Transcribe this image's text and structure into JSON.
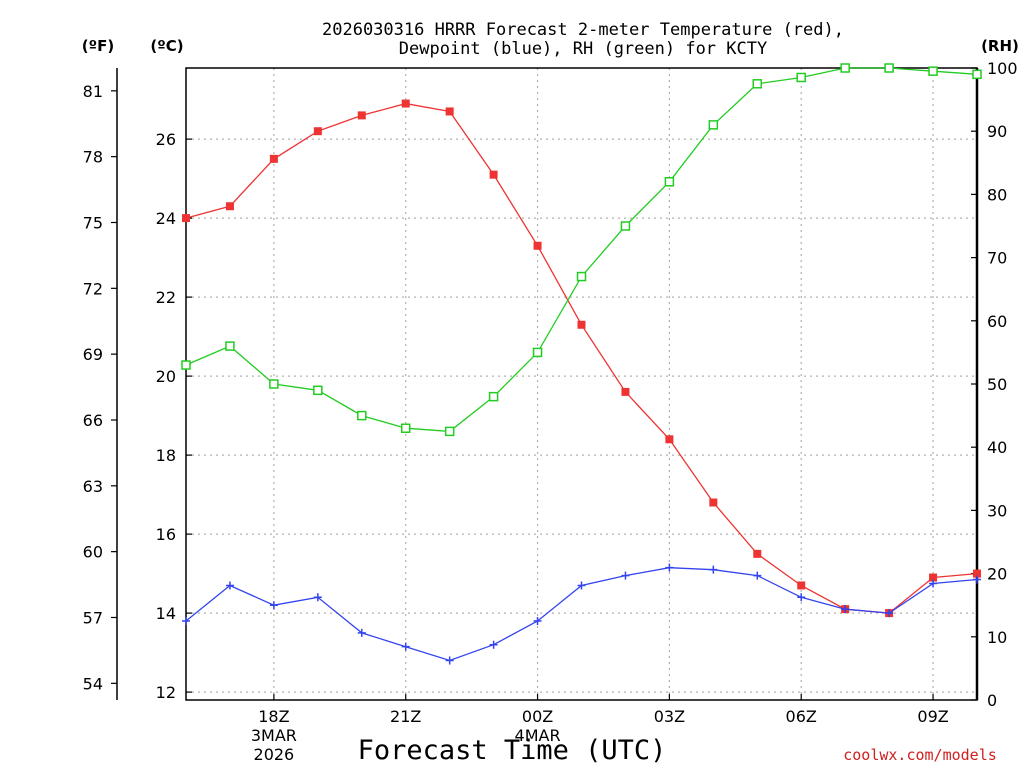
{
  "title": {
    "line1": "2026030316 HRRR Forecast 2-meter Temperature (red),",
    "line2": "Dewpoint (blue), RH (green) for KCTY"
  },
  "units": {
    "fahrenheit": "(ºF)",
    "celsius": "(ºC)",
    "rh": "(RH)"
  },
  "xlabel": "Forecast Time (UTC)",
  "credit": "coolwx.com/models",
  "colors": {
    "temperature": "#ee3333",
    "dewpoint": "#3344ee",
    "rh": "#22cc22",
    "grid": "#b0b0b0"
  },
  "chart_data": {
    "type": "line",
    "x": [
      16,
      17,
      18,
      19,
      20,
      21,
      22,
      23,
      24,
      25,
      26,
      27,
      28,
      29,
      30,
      31,
      32,
      33,
      34
    ],
    "x_unit": "hours after 00Z 3 MAR 2026",
    "xlim": [
      16,
      34
    ],
    "x_ticks": [
      {
        "x": 18,
        "lines": [
          "18Z",
          "3MAR",
          "2026"
        ]
      },
      {
        "x": 21,
        "lines": [
          "21Z"
        ]
      },
      {
        "x": 24,
        "lines": [
          "00Z",
          "4MAR"
        ]
      },
      {
        "x": 27,
        "lines": [
          "03Z"
        ]
      },
      {
        "x": 30,
        "lines": [
          "06Z"
        ]
      },
      {
        "x": 33,
        "lines": [
          "09Z"
        ]
      }
    ],
    "ylim_c": [
      11.8,
      27.8
    ],
    "yticks_c": [
      12,
      14,
      16,
      18,
      20,
      22,
      24,
      26
    ],
    "yticks_f": [
      54,
      57,
      60,
      63,
      66,
      69,
      72,
      75,
      78,
      81
    ],
    "ylim_rh": [
      0,
      100
    ],
    "yticks_rh": [
      0,
      10,
      20,
      30,
      40,
      50,
      60,
      70,
      80,
      90,
      100
    ],
    "series": [
      {
        "name": "Temperature",
        "axis": "c",
        "marker": "filled-square",
        "values": [
          24.0,
          24.3,
          25.5,
          26.2,
          26.6,
          26.9,
          26.7,
          25.1,
          23.3,
          21.3,
          19.6,
          18.4,
          16.8,
          15.5,
          14.7,
          14.1,
          14.0,
          14.9,
          15.0
        ]
      },
      {
        "name": "Dewpoint",
        "axis": "c",
        "marker": "plus",
        "values": [
          13.8,
          14.7,
          14.2,
          14.4,
          13.5,
          13.15,
          12.8,
          13.2,
          13.8,
          14.7,
          14.95,
          15.15,
          15.1,
          14.95,
          14.4,
          14.1,
          14.0,
          14.75,
          14.85
        ]
      },
      {
        "name": "RH",
        "axis": "rh",
        "marker": "open-square",
        "values": [
          53,
          56,
          50,
          49,
          45,
          43,
          42.5,
          48,
          55,
          67,
          75,
          82,
          91,
          97.5,
          98.5,
          100,
          100,
          99.5,
          99
        ]
      }
    ]
  }
}
